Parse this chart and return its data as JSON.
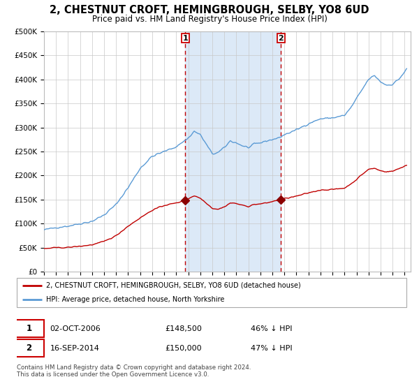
{
  "title": "2, CHESTNUT CROFT, HEMINGBROUGH, SELBY, YO8 6UD",
  "subtitle": "Price paid vs. HM Land Registry's House Price Index (HPI)",
  "legend_line1": "2, CHESTNUT CROFT, HEMINGBROUGH, SELBY, YO8 6UD (detached house)",
  "legend_line2": "HPI: Average price, detached house, North Yorkshire",
  "sale1_date": "02-OCT-2006",
  "sale1_price": "£148,500",
  "sale1_hpi": "46% ↓ HPI",
  "sale2_date": "16-SEP-2014",
  "sale2_price": "£150,000",
  "sale2_hpi": "47% ↓ HPI",
  "footer": "Contains HM Land Registry data © Crown copyright and database right 2024.\nThis data is licensed under the Open Government Licence v3.0.",
  "hpi_color": "#5b9bd5",
  "property_color": "#c00000",
  "marker_color": "#8b0000",
  "vline_color": "#c00000",
  "shade_color": "#dce9f7",
  "background_color": "#ffffff",
  "grid_color": "#c8c8c8",
  "ylim": [
    0,
    500000
  ],
  "sale1_x": 2006.75,
  "sale2_x": 2014.71,
  "hpi_keypoints_x": [
    1995.0,
    1996.0,
    1997.0,
    1998.0,
    1999.0,
    2000.0,
    2001.0,
    2002.0,
    2003.0,
    2004.0,
    2005.0,
    2006.0,
    2007.0,
    2007.5,
    2008.0,
    2008.5,
    2009.0,
    2009.5,
    2010.0,
    2010.5,
    2011.0,
    2011.5,
    2012.0,
    2012.5,
    2013.0,
    2013.5,
    2014.0,
    2014.5,
    2015.0,
    2016.0,
    2017.0,
    2018.0,
    2019.0,
    2020.0,
    2020.5,
    2021.0,
    2021.5,
    2022.0,
    2022.5,
    2023.0,
    2023.5,
    2024.0,
    2024.5,
    2025.0,
    2025.25
  ],
  "hpi_keypoints_y": [
    87000,
    92000,
    95000,
    100000,
    105000,
    118000,
    140000,
    175000,
    215000,
    240000,
    250000,
    260000,
    278000,
    292000,
    285000,
    265000,
    245000,
    248000,
    258000,
    272000,
    268000,
    262000,
    258000,
    265000,
    268000,
    272000,
    275000,
    278000,
    285000,
    295000,
    308000,
    318000,
    320000,
    325000,
    340000,
    360000,
    380000,
    400000,
    408000,
    395000,
    388000,
    390000,
    400000,
    415000,
    425000
  ],
  "prop_keypoints_x": [
    1995.0,
    1995.5,
    1996.0,
    1997.0,
    1997.5,
    1998.0,
    1999.0,
    2000.0,
    2001.0,
    2002.0,
    2003.0,
    2004.0,
    2005.0,
    2006.0,
    2006.75,
    2007.0,
    2007.5,
    2008.0,
    2008.5,
    2009.0,
    2009.5,
    2010.0,
    2010.5,
    2011.0,
    2011.5,
    2012.0,
    2012.5,
    2013.0,
    2013.5,
    2014.0,
    2014.71,
    2015.0,
    2016.0,
    2017.0,
    2018.0,
    2019.0,
    2020.0,
    2020.5,
    2021.0,
    2021.5,
    2022.0,
    2022.5,
    2023.0,
    2023.5,
    2024.0,
    2024.5,
    2025.0,
    2025.25
  ],
  "prop_keypoints_y": [
    48000,
    49000,
    50000,
    50500,
    52000,
    53000,
    56000,
    63000,
    75000,
    95000,
    112000,
    128000,
    138000,
    143000,
    148500,
    152000,
    158000,
    153000,
    143000,
    132000,
    130000,
    135000,
    143000,
    142000,
    138000,
    136000,
    140000,
    141000,
    143000,
    146000,
    150000,
    152000,
    157000,
    164000,
    170000,
    171000,
    174000,
    182000,
    192000,
    203000,
    213000,
    215000,
    210000,
    208000,
    209000,
    214000,
    220000,
    222000
  ]
}
